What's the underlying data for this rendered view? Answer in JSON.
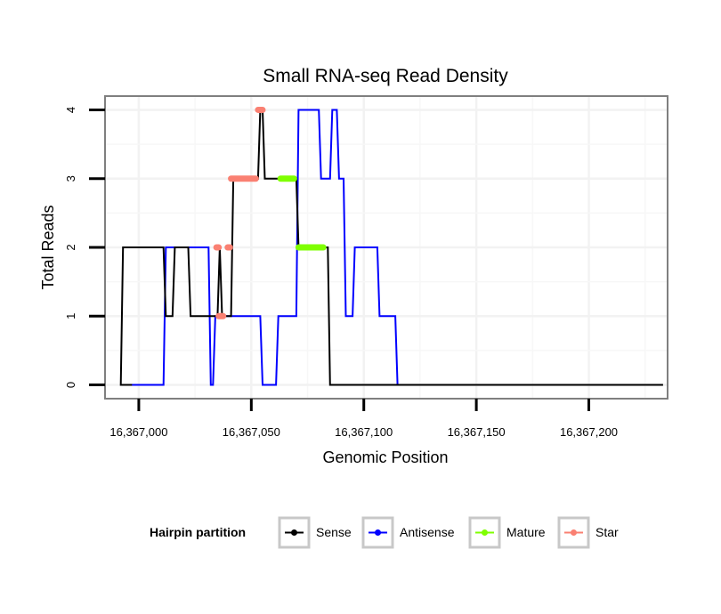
{
  "chart_data": {
    "type": "line",
    "title": "Small RNA-seq Read Density",
    "xlabel": "Genomic Position",
    "ylabel": "Total Reads",
    "xlim": [
      16366985,
      16367235
    ],
    "ylim": [
      -0.2,
      4.2
    ],
    "x_ticks": [
      16367000,
      16367050,
      16367100,
      16367150,
      16367200
    ],
    "x_tick_labels": [
      "16,367,000",
      "16,367,050",
      "16,367,100",
      "16,367,150",
      "16,367,200"
    ],
    "y_ticks": [
      0,
      1,
      2,
      3,
      4
    ],
    "y_tick_labels": [
      "0",
      "1",
      "2",
      "3",
      "4"
    ],
    "grid": true,
    "legend": {
      "title": "Hairpin partition",
      "position": "bottom",
      "entries": [
        "Sense",
        "Antisense",
        "Mature",
        "Star"
      ]
    },
    "series": [
      {
        "name": "Sense",
        "color": "#000000",
        "kind": "line",
        "x": [
          16366997,
          16366992,
          16366993,
          16367011,
          16367012,
          16367015,
          16367016,
          16367022,
          16367023,
          16367035,
          16367036,
          16367037,
          16367038,
          16367041,
          16367042,
          16367053,
          16367054,
          16367055,
          16367056,
          16367070,
          16367071,
          16367084,
          16367085,
          16367233
        ],
        "y": [
          0,
          0,
          2,
          2,
          1,
          1,
          2,
          2,
          1,
          1,
          2,
          1,
          1,
          1,
          3,
          3,
          4,
          4,
          3,
          3,
          2,
          2,
          0,
          0
        ]
      },
      {
        "name": "Antisense",
        "color": "#0000ff",
        "kind": "line",
        "x": [
          16366993,
          16367011,
          16367012,
          16367031,
          16367032,
          16367033,
          16367034,
          16367046,
          16367047,
          16367054,
          16367055,
          16367061,
          16367062,
          16367070,
          16367071,
          16367080,
          16367081,
          16367085,
          16367086,
          16367088,
          16367089,
          16367091,
          16367092,
          16367095,
          16367096,
          16367106,
          16367107,
          16367114,
          16367115,
          16367164,
          16367165,
          16367185
        ],
        "y": [
          0,
          0,
          2,
          2,
          0,
          0,
          1,
          1,
          1,
          1,
          0,
          0,
          1,
          1,
          4,
          4,
          3,
          3,
          4,
          4,
          3,
          3,
          1,
          1,
          2,
          2,
          1,
          1,
          0,
          0,
          0,
          0
        ]
      },
      {
        "name": "Mature",
        "color": "#7fff00",
        "kind": "points",
        "segments": [
          {
            "x_start": 16367063,
            "x_end": 16367069,
            "y": 3
          },
          {
            "x_start": 16367071,
            "x_end": 16367082,
            "y": 2
          }
        ]
      },
      {
        "name": "Star",
        "color": "#fa8072",
        "kind": "points",
        "segments": [
          {
            "x_start": 16367034.5,
            "x_end": 16367035.5,
            "y": 2
          },
          {
            "x_start": 16367039.5,
            "x_end": 16367040.5,
            "y": 2
          },
          {
            "x_start": 16367035.5,
            "x_end": 16367037.5,
            "y": 1
          },
          {
            "x_start": 16367041,
            "x_end": 16367052,
            "y": 3
          },
          {
            "x_start": 16367053,
            "x_end": 16367055,
            "y": 4
          }
        ]
      }
    ]
  }
}
